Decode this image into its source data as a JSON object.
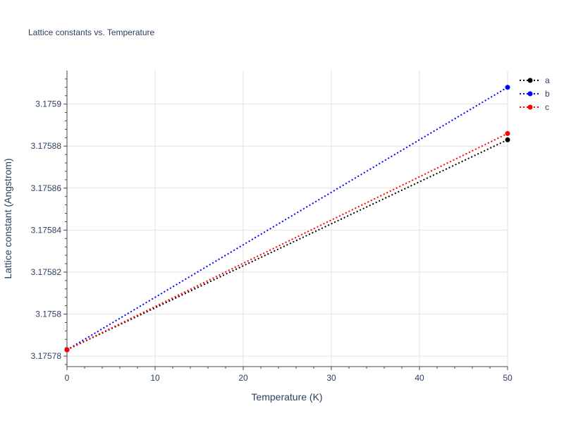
{
  "chart_data": {
    "type": "line",
    "title": "Lattice constants vs. Temperature",
    "xlabel": "Temperature (K)",
    "ylabel": "Lattice constant (Angstrom)",
    "xlim": [
      0,
      50
    ],
    "ylim": [
      3.175775,
      3.175916
    ],
    "x_ticks": [
      0,
      10,
      20,
      30,
      40,
      50
    ],
    "x_tick_labels": [
      "0",
      "10",
      "20",
      "30",
      "40",
      "50"
    ],
    "y_ticks": [
      3.17578,
      3.1758,
      3.17582,
      3.17584,
      3.17586,
      3.17588,
      3.1759
    ],
    "y_tick_labels": [
      "3.17578",
      "3.1758",
      "3.17582",
      "3.17584",
      "3.17586",
      "3.17588",
      "3.1759"
    ],
    "grid": true,
    "legend_position": "top-right",
    "series": [
      {
        "name": "a",
        "color": "#000000",
        "x": [
          0,
          50
        ],
        "y": [
          3.175783,
          3.175883
        ]
      },
      {
        "name": "b",
        "color": "#0000ff",
        "x": [
          0,
          50
        ],
        "y": [
          3.175783,
          3.175908
        ]
      },
      {
        "name": "c",
        "color": "#ff0000",
        "x": [
          0,
          50
        ],
        "y": [
          3.175783,
          3.175886
        ]
      }
    ]
  }
}
